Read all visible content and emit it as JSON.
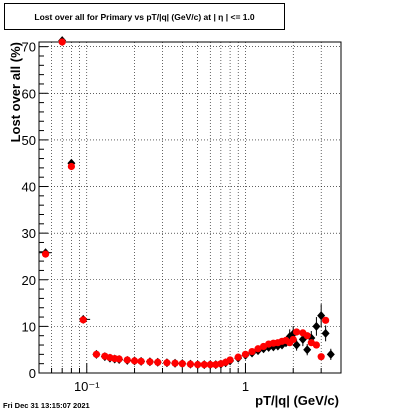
{
  "chart_data": {
    "type": "scatter",
    "title": "Lost over all for Primary vs pT/|q| (GeV/c) at |  η  | <= 1.0",
    "xlabel": "pT/|q| (GeV/c)",
    "ylabel": "Lost over all (%)",
    "xscale": "log",
    "xlim": [
      0.05,
      4.0
    ],
    "ylim": [
      0,
      71
    ],
    "grid": true,
    "x_tick_labels": [
      "10⁻¹",
      "1"
    ],
    "y_tick_labels": [
      "0",
      "10",
      "20",
      "30",
      "40",
      "50",
      "60",
      "70"
    ],
    "series": [
      {
        "color": "#000000",
        "marker": "diamond",
        "points": [
          {
            "x": 0.055,
            "y": 25.8,
            "xerr": [
              0.05,
              0.06
            ]
          },
          {
            "x": 0.07,
            "y": 71.3
          },
          {
            "x": 0.08,
            "y": 45.0
          },
          {
            "x": 0.095,
            "y": 11.5,
            "xerr": [
              0.09,
              0.105
            ]
          },
          {
            "x": 0.115,
            "y": 4.0,
            "xerr": [
              0.11,
              0.12
            ]
          },
          {
            "x": 0.13,
            "y": 3.5
          },
          {
            "x": 0.14,
            "y": 3.2
          },
          {
            "x": 0.15,
            "y": 3.0
          },
          {
            "x": 0.16,
            "y": 2.9
          },
          {
            "x": 0.18,
            "y": 2.7
          },
          {
            "x": 0.2,
            "y": 2.6
          },
          {
            "x": 0.22,
            "y": 2.5
          },
          {
            "x": 0.25,
            "y": 2.4
          },
          {
            "x": 0.28,
            "y": 2.3
          },
          {
            "x": 0.32,
            "y": 2.2
          },
          {
            "x": 0.36,
            "y": 2.1
          },
          {
            "x": 0.4,
            "y": 2.0
          },
          {
            "x": 0.45,
            "y": 1.9
          },
          {
            "x": 0.5,
            "y": 1.8
          },
          {
            "x": 0.55,
            "y": 1.8
          },
          {
            "x": 0.6,
            "y": 1.8
          },
          {
            "x": 0.65,
            "y": 1.8
          },
          {
            "x": 0.7,
            "y": 1.9
          },
          {
            "x": 0.75,
            "y": 2.2
          },
          {
            "x": 0.8,
            "y": 2.6
          },
          {
            "x": 0.9,
            "y": 3.2
          },
          {
            "x": 1.0,
            "y": 3.8
          },
          {
            "x": 1.1,
            "y": 4.3
          },
          {
            "x": 1.2,
            "y": 4.8
          },
          {
            "x": 1.3,
            "y": 5.2
          },
          {
            "x": 1.4,
            "y": 5.5
          },
          {
            "x": 1.5,
            "y": 5.6
          },
          {
            "x": 1.6,
            "y": 5.8
          },
          {
            "x": 1.7,
            "y": 6.0
          },
          {
            "x": 1.8,
            "y": 6.5
          },
          {
            "x": 1.9,
            "y": 7.8
          },
          {
            "x": 2.0,
            "y": 8.4
          },
          {
            "x": 2.1,
            "y": 6.0
          },
          {
            "x": 2.3,
            "y": 7.2
          },
          {
            "x": 2.45,
            "y": 5.0
          },
          {
            "x": 2.6,
            "y": 7.5
          },
          {
            "x": 2.8,
            "y": 10.0
          },
          {
            "x": 3.0,
            "y": 12.3
          },
          {
            "x": 3.2,
            "y": 8.5
          },
          {
            "x": 3.45,
            "y": 4.0
          }
        ]
      },
      {
        "color": "#ff0000",
        "marker": "circle",
        "points": [
          {
            "x": 0.055,
            "y": 25.5
          },
          {
            "x": 0.07,
            "y": 71.0
          },
          {
            "x": 0.08,
            "y": 44.3
          },
          {
            "x": 0.095,
            "y": 11.4
          },
          {
            "x": 0.115,
            "y": 4.0
          },
          {
            "x": 0.13,
            "y": 3.6
          },
          {
            "x": 0.14,
            "y": 3.3
          },
          {
            "x": 0.15,
            "y": 3.1
          },
          {
            "x": 0.16,
            "y": 3.0
          },
          {
            "x": 0.18,
            "y": 2.8
          },
          {
            "x": 0.2,
            "y": 2.6
          },
          {
            "x": 0.22,
            "y": 2.5
          },
          {
            "x": 0.25,
            "y": 2.4
          },
          {
            "x": 0.28,
            "y": 2.3
          },
          {
            "x": 0.32,
            "y": 2.2
          },
          {
            "x": 0.36,
            "y": 2.1
          },
          {
            "x": 0.4,
            "y": 2.0
          },
          {
            "x": 0.45,
            "y": 1.9
          },
          {
            "x": 0.5,
            "y": 1.8
          },
          {
            "x": 0.55,
            "y": 1.8
          },
          {
            "x": 0.6,
            "y": 1.8
          },
          {
            "x": 0.65,
            "y": 1.8
          },
          {
            "x": 0.7,
            "y": 2.0
          },
          {
            "x": 0.75,
            "y": 2.3
          },
          {
            "x": 0.8,
            "y": 2.8
          },
          {
            "x": 0.9,
            "y": 3.4
          },
          {
            "x": 1.0,
            "y": 4.0
          },
          {
            "x": 1.1,
            "y": 4.6
          },
          {
            "x": 1.2,
            "y": 5.2
          },
          {
            "x": 1.3,
            "y": 5.7
          },
          {
            "x": 1.4,
            "y": 6.2
          },
          {
            "x": 1.5,
            "y": 6.4
          },
          {
            "x": 1.6,
            "y": 6.5
          },
          {
            "x": 1.7,
            "y": 6.8
          },
          {
            "x": 1.8,
            "y": 7.0
          },
          {
            "x": 1.9,
            "y": 6.5
          },
          {
            "x": 2.0,
            "y": 7.2
          },
          {
            "x": 2.1,
            "y": 8.8
          },
          {
            "x": 2.3,
            "y": 8.6
          },
          {
            "x": 2.45,
            "y": 8.0
          },
          {
            "x": 2.6,
            "y": 6.5
          },
          {
            "x": 2.8,
            "y": 6.0
          },
          {
            "x": 3.0,
            "y": 3.5
          },
          {
            "x": 3.2,
            "y": 11.3
          }
        ]
      }
    ]
  },
  "footer": {
    "timestamp": "Fri Dec 31 13:15:07 2021"
  }
}
